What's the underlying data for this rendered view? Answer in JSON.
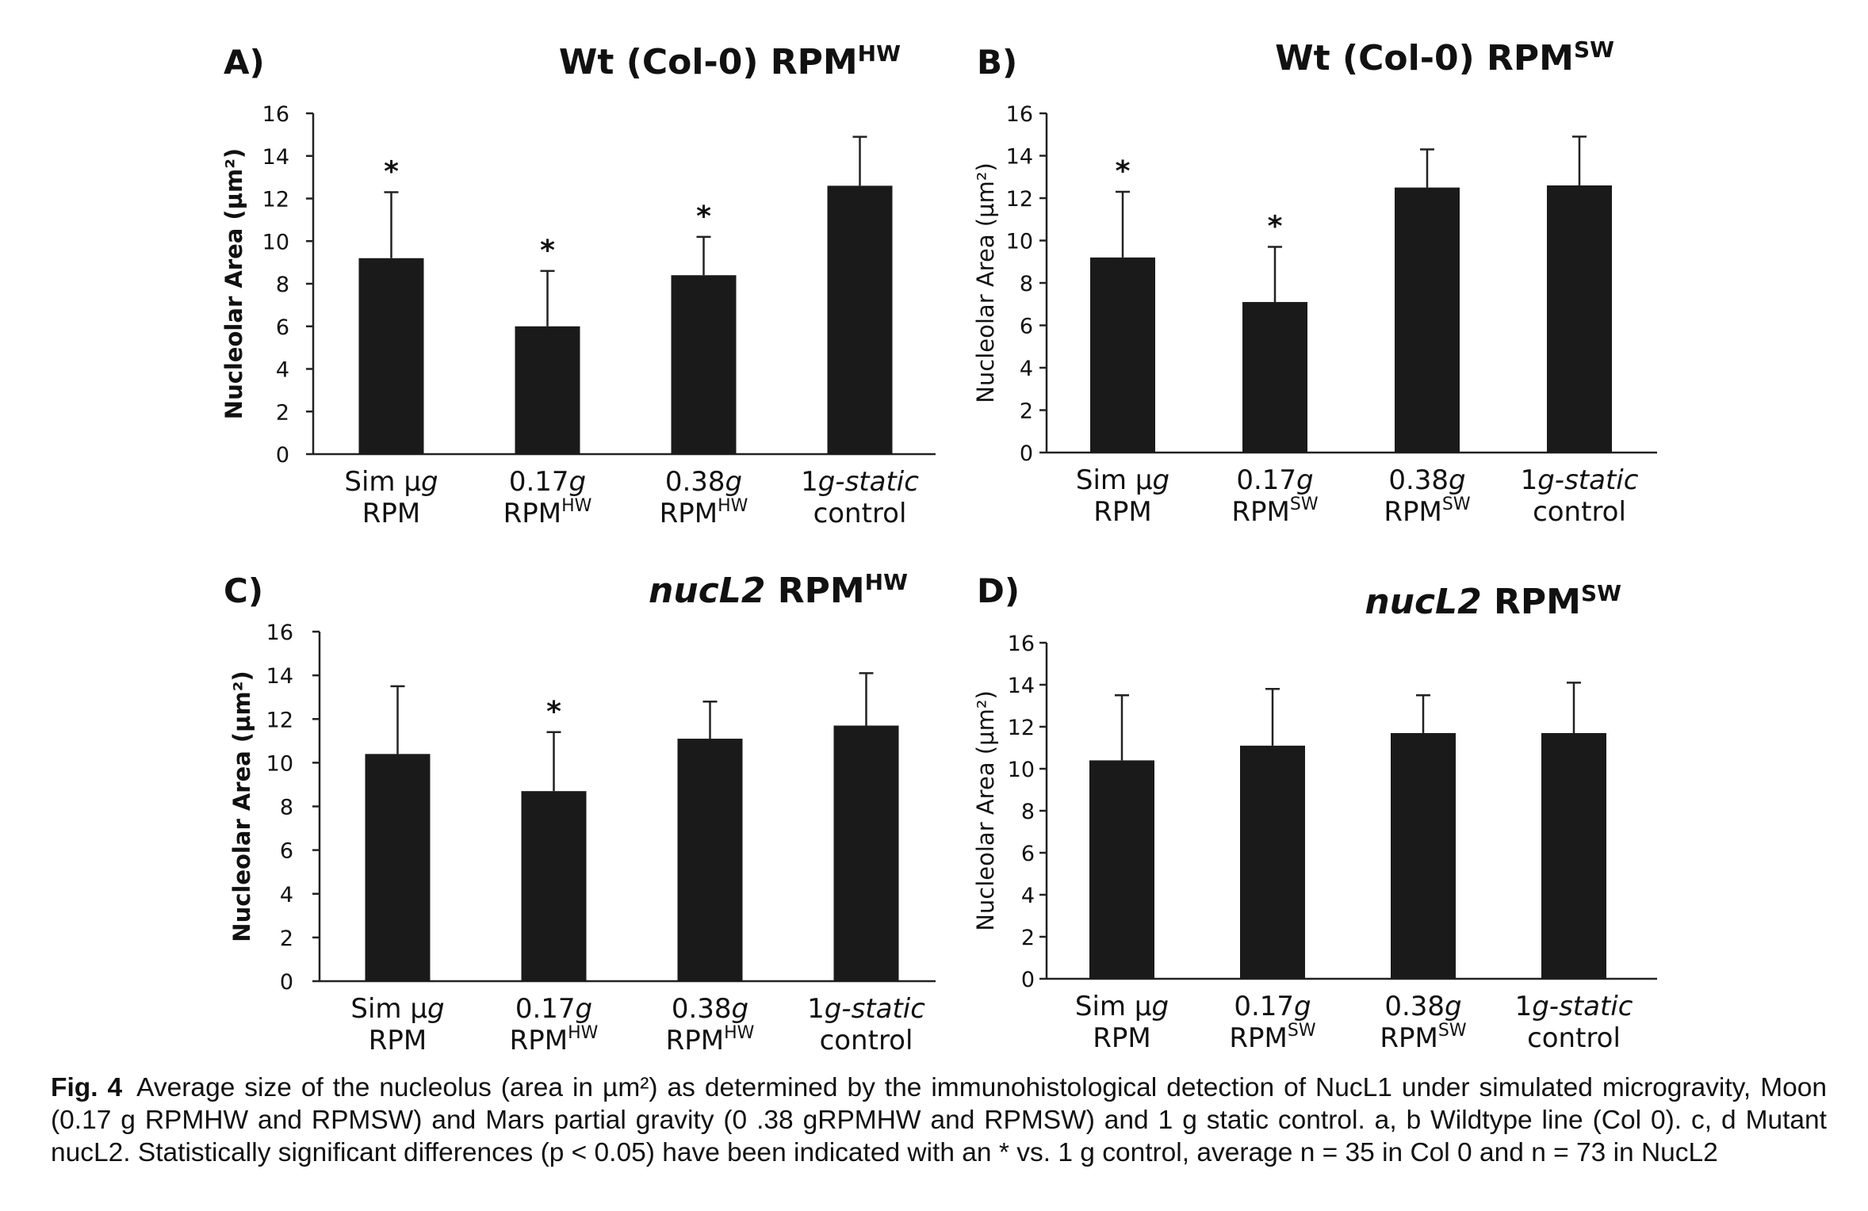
{
  "chart_data": [
    {
      "panel": "A)",
      "type": "bar",
      "title": {
        "main": "Wt (Col-0) RPM",
        "sup": "HW",
        "italic": ""
      },
      "ylabel": "Nucleolar Area (µm²)",
      "ylabel_bold": true,
      "ylim": [
        0,
        16
      ],
      "yticks": [
        0,
        2,
        4,
        6,
        8,
        10,
        12,
        14,
        16
      ],
      "categories": [
        {
          "line1": "Sim µg",
          "line2": "RPM"
        },
        {
          "line1": "0.17g",
          "line2": "RPMHW"
        },
        {
          "line1": "0.38g",
          "line2": "RPMHW"
        },
        {
          "line1": "1g-static",
          "line2": "control"
        }
      ],
      "values": [
        9.2,
        6.0,
        8.4,
        12.6
      ],
      "errors": [
        3.1,
        2.6,
        1.8,
        2.3
      ],
      "significance": [
        "*",
        "*",
        "*",
        ""
      ]
    },
    {
      "panel": "B)",
      "type": "bar",
      "title": {
        "main": "Wt (Col-0) RPM",
        "sup": "SW",
        "italic": ""
      },
      "ylabel": "Nucleolar Area (µm²)",
      "ylabel_bold": false,
      "ylim": [
        0,
        16
      ],
      "yticks": [
        0,
        2,
        4,
        6,
        8,
        10,
        12,
        14,
        16
      ],
      "categories": [
        {
          "line1": "Sim µg",
          "line2": "RPM"
        },
        {
          "line1": "0.17g",
          "line2": "RPMSW"
        },
        {
          "line1": "0.38g",
          "line2": "RPMSW"
        },
        {
          "line1": "1g-static",
          "line2": "control"
        }
      ],
      "values": [
        9.2,
        7.1,
        12.5,
        12.6
      ],
      "errors": [
        3.1,
        2.6,
        1.8,
        2.3
      ],
      "significance": [
        "*",
        "*",
        "",
        ""
      ]
    },
    {
      "panel": "C)",
      "type": "bar",
      "title": {
        "main": "RPM",
        "sup": "HW",
        "italic": "nucL2"
      },
      "ylabel": "Nucleolar Area (µm²)",
      "ylabel_bold": true,
      "ylim": [
        0,
        16
      ],
      "yticks": [
        0,
        2,
        4,
        6,
        8,
        10,
        12,
        14,
        16
      ],
      "categories": [
        {
          "line1": "Sim µg",
          "line2": "RPM"
        },
        {
          "line1": "0.17g",
          "line2": "RPMHW"
        },
        {
          "line1": "0.38g",
          "line2": "RPMHW"
        },
        {
          "line1": "1g-static",
          "line2": "control"
        }
      ],
      "values": [
        10.4,
        8.7,
        11.1,
        11.7
      ],
      "errors": [
        3.1,
        2.7,
        1.7,
        2.4
      ],
      "significance": [
        "",
        "*",
        "",
        ""
      ]
    },
    {
      "panel": "D)",
      "type": "bar",
      "title": {
        "main": "RPM",
        "sup": "SW",
        "italic": "nucL2"
      },
      "ylabel": "Nucleolar Area (µm²)",
      "ylabel_bold": false,
      "ylim": [
        0,
        16
      ],
      "yticks": [
        0,
        2,
        4,
        6,
        8,
        10,
        12,
        14,
        16
      ],
      "categories": [
        {
          "line1": "Sim µg",
          "line2": "RPM"
        },
        {
          "line1": "0.17g",
          "line2": "RPMSW"
        },
        {
          "line1": "0.38g",
          "line2": "RPMSW"
        },
        {
          "line1": "1g-static",
          "line2": "control"
        }
      ],
      "values": [
        10.4,
        11.1,
        11.7,
        11.7
      ],
      "errors": [
        3.1,
        2.7,
        1.8,
        2.4
      ],
      "significance": [
        "",
        "",
        "",
        ""
      ]
    }
  ],
  "colors": {
    "bar": "#1a1a1a",
    "axis": "#222222"
  },
  "caption": {
    "label": "Fig. 4",
    "text": "Average size of the nucleolus (area in µm²) as determined by the immunohistological detection of NucL1 under simulated microgravity, Moon (0.17 g RPMHW and RPMSW) and Mars partial gravity (0 .38 gRPMHW and RPMSW) and 1 g static control. a, b Wildtype line (Col 0). c, d Mutant nucL2. Statistically significant differences (p < 0.05) have been indicated with an * vs. 1 g control, average n = 35 in Col 0 and n = 73 in NucL2"
  }
}
